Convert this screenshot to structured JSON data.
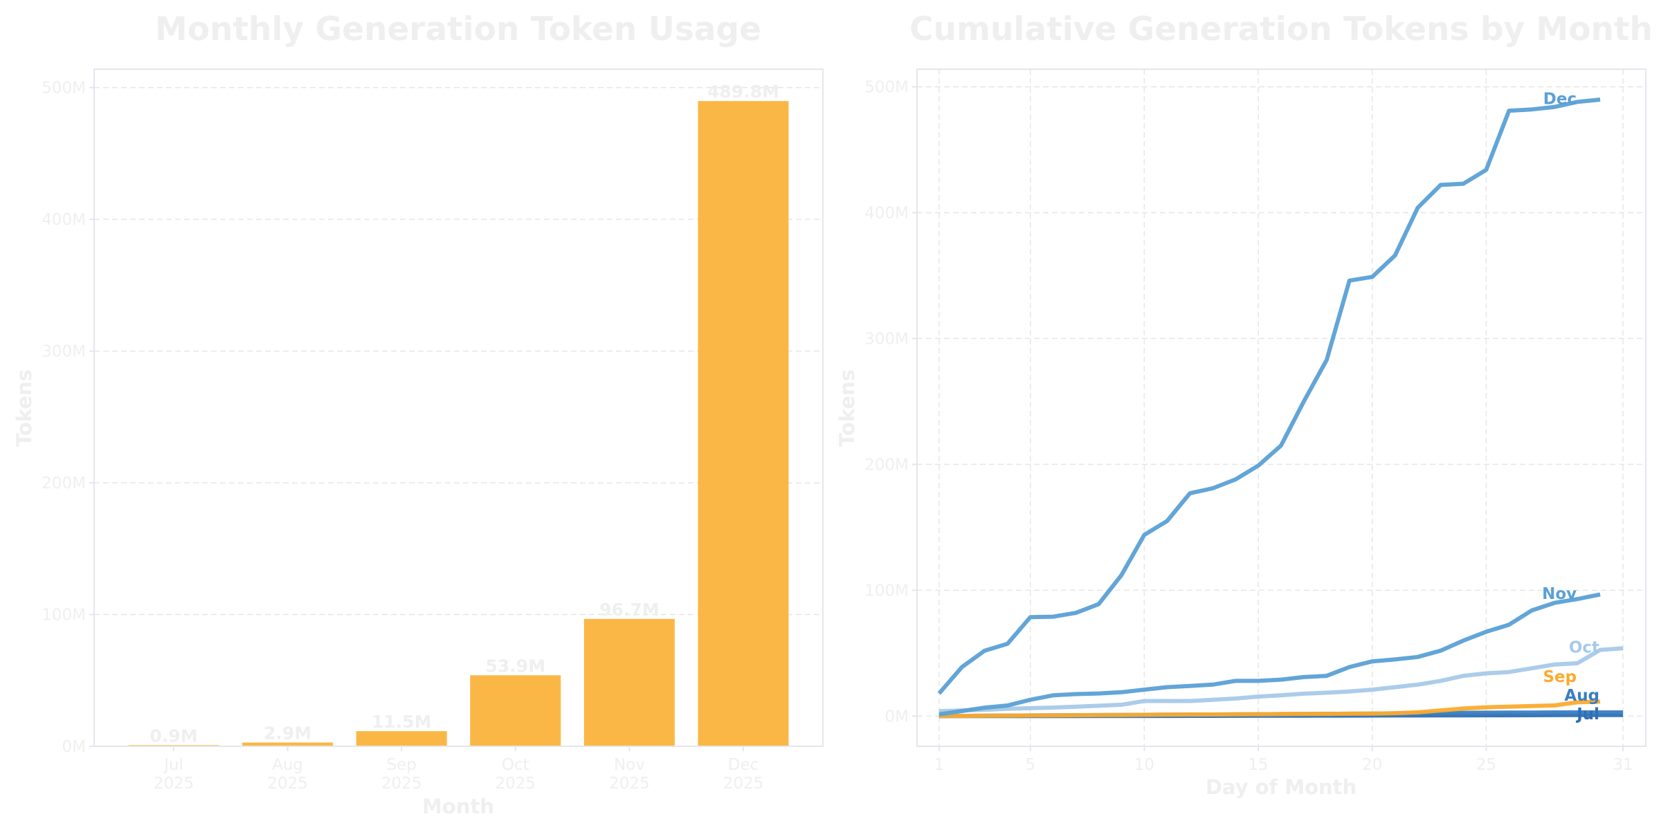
{
  "chart_data": [
    {
      "type": "bar",
      "title": "Monthly Generation Token Usage",
      "xlabel": "Month",
      "ylabel": "Tokens",
      "categories": [
        "Jul\n2025",
        "Aug\n2025",
        "Sep\n2025",
        "Oct\n2025",
        "Nov\n2025",
        "Dec\n2025"
      ],
      "values": [
        0.9,
        2.9,
        11.5,
        53.9,
        96.7,
        489.8
      ],
      "data_labels": [
        "0.9M",
        "2.9M",
        "11.5M",
        "53.9M",
        "96.7M",
        "489.8M"
      ],
      "unit": "M",
      "ylim": [
        0,
        514
      ],
      "yticks": [
        0,
        100,
        200,
        300,
        400,
        500
      ],
      "ytick_labels": [
        "0M",
        "100M",
        "200M",
        "300M",
        "400M",
        "500M"
      ],
      "grid": true,
      "bar_color": "#fbb540"
    },
    {
      "type": "line",
      "title": "Cumulative Generation Tokens by Month",
      "xlabel": "Day of Month",
      "ylabel": "Tokens",
      "xlim": [
        0.03,
        32
      ],
      "ylim": [
        -24,
        514
      ],
      "xticks": [
        1,
        5,
        10,
        15,
        20,
        25,
        31
      ],
      "yticks": [
        0,
        100,
        200,
        300,
        400,
        500
      ],
      "ytick_labels": [
        "0M",
        "100M",
        "200M",
        "300M",
        "400M",
        "500M"
      ],
      "grid": true,
      "series": [
        {
          "name": "Jul",
          "color": "#2f6fb3",
          "values": [
            0,
            0,
            0,
            0,
            0,
            0.05,
            0.05,
            0.1,
            0.1,
            0.1,
            0.15,
            0.2,
            0.2,
            0.25,
            0.3,
            0.3,
            0.35,
            0.4,
            0.4,
            0.45,
            0.5,
            0.5,
            0.55,
            0.6,
            0.65,
            0.7,
            0.75,
            0.8,
            0.85,
            0.9,
            0.9
          ]
        },
        {
          "name": "Aug",
          "color": "#3a7ec2",
          "values": [
            0.1,
            0.2,
            0.3,
            0.4,
            0.5,
            0.6,
            0.7,
            0.8,
            0.9,
            1.0,
            1.1,
            1.2,
            1.3,
            1.4,
            1.5,
            1.6,
            1.7,
            1.8,
            1.9,
            2.0,
            2.1,
            2.2,
            2.4,
            2.6,
            2.7,
            2.8,
            2.8,
            2.9,
            2.9,
            2.9,
            2.9
          ]
        },
        {
          "name": "Sep",
          "color": "#fbab2e",
          "values": [
            0.1,
            0.2,
            0.3,
            0.4,
            0.5,
            0.6,
            0.7,
            0.8,
            0.9,
            1.0,
            1.1,
            1.2,
            1.3,
            1.4,
            1.5,
            1.6,
            1.7,
            1.8,
            1.9,
            2.0,
            2.3,
            3.0,
            4.5,
            6.0,
            7.0,
            7.5,
            8.0,
            8.5,
            11.0,
            11.5
          ]
        },
        {
          "name": "Oct",
          "color": "#a6c9e9",
          "values": [
            3.9,
            4.5,
            5.0,
            5.8,
            6.3,
            6.8,
            7.5,
            8.2,
            9.0,
            12.0,
            12.0,
            12.0,
            13.0,
            14.0,
            15.5,
            16.5,
            17.8,
            18.6,
            19.5,
            21.0,
            23.0,
            25.0,
            28.0,
            32.0,
            34.0,
            35.0,
            38.0,
            41.0,
            42.0,
            52.6,
            53.9
          ]
        },
        {
          "name": "Nov",
          "color": "#5aa0d6",
          "values": [
            1.4,
            4.0,
            6.7,
            8.4,
            13.0,
            16.5,
            17.5,
            18.0,
            19.0,
            21.0,
            23.0,
            24.0,
            25.0,
            28.0,
            28.0,
            29.0,
            31.0,
            32.0,
            39.0,
            43.5,
            45.0,
            47.0,
            52.0,
            60.0,
            67.0,
            72.6,
            84.0,
            90.0,
            93.0,
            96.7
          ]
        },
        {
          "name": "Dec",
          "color": "#5aa0d6",
          "values": [
            18,
            39,
            52,
            57.5,
            78.6,
            79,
            82,
            89,
            112,
            144,
            155,
            177,
            181,
            188,
            199,
            215,
            250,
            283,
            346,
            349,
            366,
            404,
            422,
            423,
            434,
            481,
            482,
            484,
            488,
            489.8
          ]
        }
      ]
    }
  ]
}
